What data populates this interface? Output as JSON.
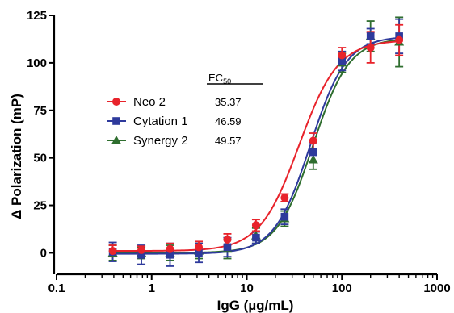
{
  "chart_data": {
    "type": "scatter",
    "title": "",
    "xlabel": "IgG (µg/mL)",
    "ylabel": "Δ Polarization (mP)",
    "xscale": "log",
    "xlim": [
      0.1,
      1000
    ],
    "ylim": [
      -10,
      125
    ],
    "xticks": [
      0.1,
      1,
      10,
      100,
      1000
    ],
    "xtick_labels": [
      "0.1",
      "1",
      "10",
      "100",
      "1000"
    ],
    "yticks": [
      0,
      25,
      50,
      75,
      100,
      125
    ],
    "ytick_labels": [
      "0",
      "25",
      "50",
      "75",
      "100",
      "125"
    ],
    "grid": false,
    "legend_position": "center-left",
    "x": [
      0.39,
      0.78,
      1.56,
      3.125,
      6.25,
      12.5,
      25,
      50,
      100,
      200,
      400
    ],
    "ec50_header": "EC",
    "ec50_sub": "50",
    "series": [
      {
        "name": "Neo 2",
        "marker": "circle",
        "color": "#e8232b",
        "values": [
          1,
          1.5,
          2,
          3,
          7,
          14.5,
          29,
          59,
          104,
          108,
          112
        ],
        "errors": [
          3,
          2,
          3,
          3,
          3,
          3,
          2,
          4,
          4,
          8,
          8
        ],
        "fit": {
          "bottom": 1,
          "top": 112,
          "ec50": 35.37,
          "hill": 2.1
        },
        "ec50": "35.37"
      },
      {
        "name": "Cytation 1",
        "marker": "square",
        "color": "#2e3a9c",
        "values": [
          0.5,
          -1,
          -1,
          0,
          3,
          8,
          19,
          53,
          101,
          114,
          114
        ],
        "errors": [
          5,
          5,
          6,
          5,
          5,
          3,
          4,
          5,
          5,
          4,
          9
        ],
        "fit": {
          "bottom": -0.5,
          "top": 114,
          "ec50": 46.59,
          "hill": 2.3
        },
        "ec50": "46.59"
      },
      {
        "name": "Synergy 2",
        "marker": "triangle",
        "color": "#2f6e2f",
        "values": [
          0,
          0,
          0,
          1,
          2,
          9,
          18,
          49,
          100,
          114,
          111
        ],
        "errors": [
          4,
          3,
          4,
          4,
          5,
          4,
          4,
          5,
          5,
          8,
          13
        ],
        "fit": {
          "bottom": 0,
          "top": 113,
          "ec50": 49.57,
          "hill": 2.3
        },
        "ec50": "49.57"
      }
    ]
  }
}
